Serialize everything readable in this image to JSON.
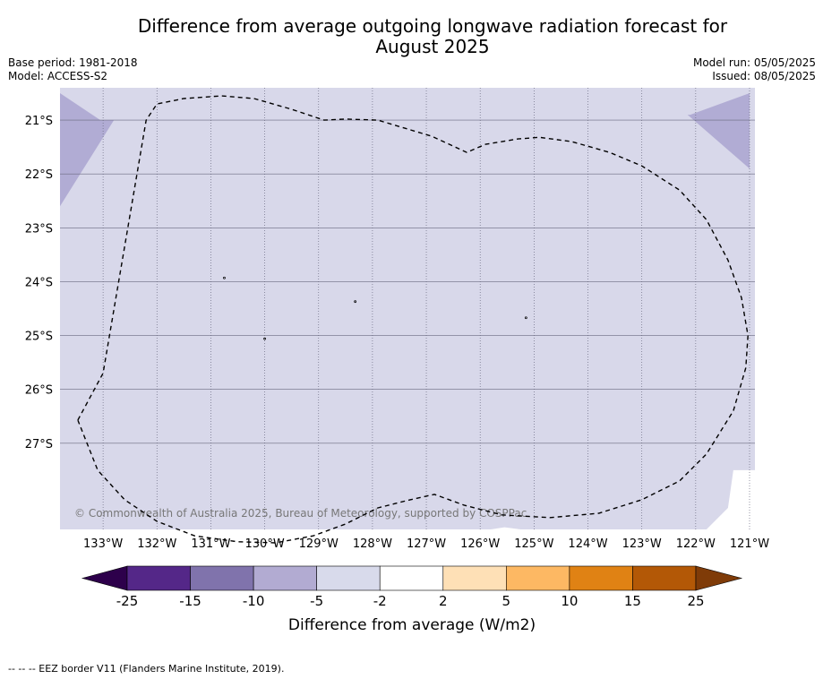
{
  "title_line1": "Difference from average outgoing longwave radiation forecast for",
  "title_line2": "August 2025",
  "base_period": "Base period: 1981-2018",
  "model": "Model: ACCESS-S2",
  "model_run": "Model run: 05/05/2025",
  "issued": "Issued: 08/05/2025",
  "copyright": "© Commonwealth of Australia 2025, Bureau of Meteorology, supported by COSPPac",
  "map": {
    "lon_range": [
      -133.8,
      -120.9
    ],
    "lat_range": [
      -28.6,
      -20.4
    ],
    "lon_ticks": [
      {
        "value": -133,
        "label": "133°W"
      },
      {
        "value": -132,
        "label": "132°W"
      },
      {
        "value": -131,
        "label": "131°W"
      },
      {
        "value": -130,
        "label": "130°W"
      },
      {
        "value": -129,
        "label": "129°W"
      },
      {
        "value": -128,
        "label": "128°W"
      },
      {
        "value": -127,
        "label": "127°W"
      },
      {
        "value": -126,
        "label": "126°W"
      },
      {
        "value": -125,
        "label": "125°W"
      },
      {
        "value": -124,
        "label": "124°W"
      },
      {
        "value": -123,
        "label": "123°W"
      },
      {
        "value": -122,
        "label": "122°W"
      },
      {
        "value": -121,
        "label": "121°W"
      }
    ],
    "lat_ticks": [
      {
        "value": -21,
        "label": "21°S"
      },
      {
        "value": -22,
        "label": "22°S"
      },
      {
        "value": -23,
        "label": "23°S"
      },
      {
        "value": -24,
        "label": "24°S"
      },
      {
        "value": -25,
        "label": "25°S"
      },
      {
        "value": -26,
        "label": "26°S"
      },
      {
        "value": -27,
        "label": "27°S"
      }
    ],
    "background_category": "-5 to -2",
    "background_color": "#d8d8ea",
    "other_fill_color": "#b1acd4",
    "regions": [
      {
        "category": "-10 to -5",
        "lonlat": [
          [
            -133.8,
            -20.5
          ],
          [
            -133.05,
            -21.0
          ],
          [
            -132.8,
            -21.0
          ],
          [
            -133.8,
            -22.6
          ]
        ]
      },
      {
        "category": "-10 to -5",
        "lonlat": [
          [
            -121.0,
            -20.5
          ],
          [
            -122.1,
            -20.9
          ],
          [
            -122.15,
            -20.9
          ],
          [
            -121.0,
            -21.9
          ]
        ]
      }
    ],
    "eez_border_lonlat": [
      [
        -133.47,
        -26.57
      ],
      [
        -133.0,
        -25.7
      ],
      [
        -132.2,
        -21.0
      ],
      [
        -132.0,
        -20.7
      ],
      [
        -131.5,
        -20.6
      ],
      [
        -130.8,
        -20.55
      ],
      [
        -130.2,
        -20.6
      ],
      [
        -129.5,
        -20.8
      ],
      [
        -128.9,
        -21.0
      ],
      [
        -128.5,
        -20.98
      ],
      [
        -127.9,
        -21.0
      ],
      [
        -127.4,
        -21.15
      ],
      [
        -126.9,
        -21.3
      ],
      [
        -126.25,
        -21.6
      ],
      [
        -125.9,
        -21.45
      ],
      [
        -125.3,
        -21.35
      ],
      [
        -124.9,
        -21.32
      ],
      [
        -124.3,
        -21.4
      ],
      [
        -123.6,
        -21.6
      ],
      [
        -123.0,
        -21.85
      ],
      [
        -122.3,
        -22.3
      ],
      [
        -121.8,
        -22.85
      ],
      [
        -121.4,
        -23.6
      ],
      [
        -121.15,
        -24.3
      ],
      [
        -121.03,
        -25.0
      ],
      [
        -121.07,
        -25.6
      ],
      [
        -121.3,
        -26.4
      ],
      [
        -121.8,
        -27.2
      ],
      [
        -122.3,
        -27.7
      ],
      [
        -123.0,
        -28.05
      ],
      [
        -123.8,
        -28.3
      ],
      [
        -124.7,
        -28.38
      ],
      [
        -125.6,
        -28.33
      ],
      [
        -126.3,
        -28.15
      ],
      [
        -126.85,
        -27.95
      ],
      [
        -127.3,
        -28.05
      ],
      [
        -127.9,
        -28.2
      ],
      [
        -128.5,
        -28.5
      ],
      [
        -129.1,
        -28.72
      ],
      [
        -129.8,
        -28.85
      ],
      [
        -130.5,
        -28.83
      ],
      [
        -131.3,
        -28.72
      ],
      [
        -132.0,
        -28.45
      ],
      [
        -132.6,
        -28.05
      ],
      [
        -133.1,
        -27.5
      ],
      [
        -133.47,
        -26.57
      ]
    ],
    "islands_lonlat": [
      [
        -130.75,
        -23.93
      ],
      [
        -128.32,
        -24.37
      ],
      [
        -130.0,
        -25.06
      ],
      [
        -125.15,
        -24.67
      ]
    ],
    "land_lonlat": [
      [
        [
          -121.3,
          -27.5
        ],
        [
          -120.9,
          -27.5
        ],
        [
          -120.9,
          -28.6
        ],
        [
          -121.8,
          -28.6
        ],
        [
          -121.4,
          -28.2
        ]
      ],
      [
        [
          -125.55,
          -28.56
        ],
        [
          -125.25,
          -28.6
        ],
        [
          -125.8,
          -28.6
        ]
      ]
    ]
  },
  "colorbar": {
    "label": "Difference from average (W/m2)",
    "ticks": [
      "-25",
      "-15",
      "-10",
      "-5",
      "-2",
      "2",
      "5",
      "10",
      "15",
      "25"
    ],
    "under_color": "#2d004b",
    "over_color": "#7f3b08",
    "colors": [
      "#542788",
      "#8073ac",
      "#b2abd2",
      "#d8daeb",
      "#ffffff",
      "#fee0b6",
      "#fdb863",
      "#e08214",
      "#b35806"
    ]
  },
  "footer": "-- -- -- EEZ border V11 (Flanders Marine Institute, 2019)."
}
